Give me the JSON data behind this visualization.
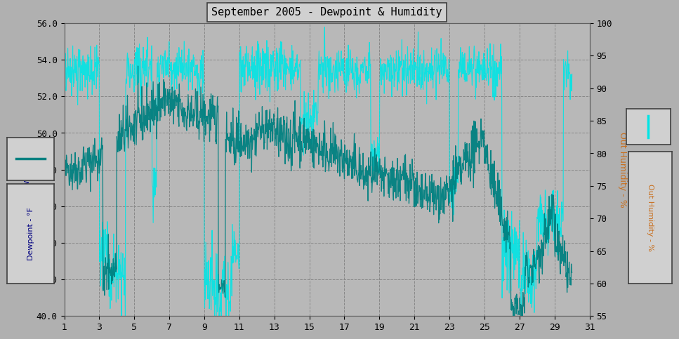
{
  "title": "September 2005 - Dewpoint & Humidity",
  "xlabel": "",
  "ylabel_left": "Dewpoint - °F",
  "ylabel_right": "Out Humidity - %",
  "ylim_left": [
    40.0,
    56.0
  ],
  "ylim_right": [
    55,
    100
  ],
  "yticks_left": [
    40.0,
    42.0,
    44.0,
    46.0,
    48.0,
    50.0,
    52.0,
    54.0,
    56.0
  ],
  "yticks_right": [
    55,
    60,
    65,
    70,
    75,
    80,
    85,
    90,
    95,
    100
  ],
  "xticks": [
    1,
    3,
    5,
    7,
    9,
    11,
    13,
    15,
    17,
    19,
    21,
    23,
    25,
    27,
    29,
    31
  ],
  "xlim": [
    1,
    30
  ],
  "background_color": "#b0b0b0",
  "plot_bg_color": "#b8b8b8",
  "grid_color": "#888888",
  "dewpoint_color": "#008080",
  "humidity_color": "#00e5e5",
  "title_fontsize": 11,
  "axis_label_fontsize": 9,
  "tick_fontsize": 9
}
